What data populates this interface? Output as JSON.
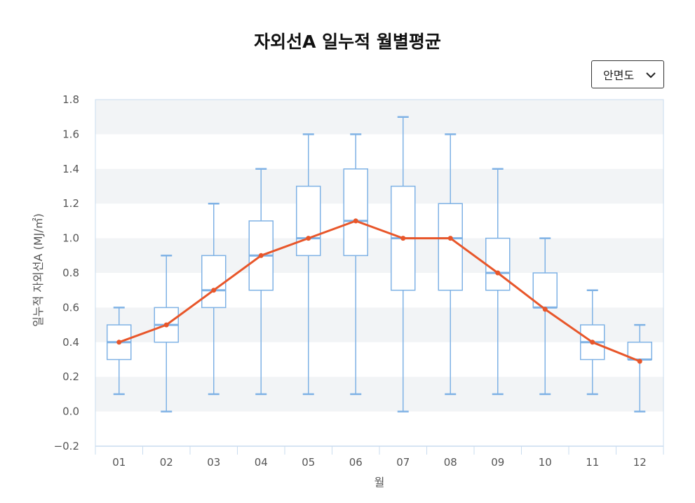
{
  "chart_data": {
    "type": "box",
    "title": "자외선A 일누적 월별평균",
    "xlabel": "월",
    "ylabel": "일누적 자외선A (MJ/㎡)",
    "categories": [
      "01",
      "02",
      "03",
      "04",
      "05",
      "06",
      "07",
      "08",
      "09",
      "10",
      "11",
      "12"
    ],
    "ylim": [
      -0.2,
      1.8
    ],
    "yticks": [
      "1.8",
      "1.6",
      "1.4",
      "1.2",
      "1.0",
      "0.8",
      "0.6",
      "0.4",
      "0.2",
      "0.0",
      "−0.2"
    ],
    "ytick_values": [
      1.8,
      1.6,
      1.4,
      1.2,
      1.0,
      0.8,
      0.6,
      0.4,
      0.2,
      0.0,
      -0.2
    ],
    "boxes": [
      {
        "min": 0.1,
        "q1": 0.3,
        "median": 0.4,
        "q3": 0.5,
        "max": 0.6
      },
      {
        "min": 0.0,
        "q1": 0.4,
        "median": 0.5,
        "q3": 0.6,
        "max": 0.9
      },
      {
        "min": 0.1,
        "q1": 0.6,
        "median": 0.7,
        "q3": 0.9,
        "max": 1.2
      },
      {
        "min": 0.1,
        "q1": 0.7,
        "median": 0.9,
        "q3": 1.1,
        "max": 1.4
      },
      {
        "min": 0.1,
        "q1": 0.9,
        "median": 1.0,
        "q3": 1.3,
        "max": 1.6
      },
      {
        "min": 0.1,
        "q1": 0.9,
        "median": 1.1,
        "q3": 1.4,
        "max": 1.6
      },
      {
        "min": 0.0,
        "q1": 0.7,
        "median": 1.0,
        "q3": 1.3,
        "max": 1.7
      },
      {
        "min": 0.1,
        "q1": 0.7,
        "median": 1.0,
        "q3": 1.2,
        "max": 1.6
      },
      {
        "min": 0.1,
        "q1": 0.7,
        "median": 0.8,
        "q3": 1.0,
        "max": 1.4
      },
      {
        "min": 0.1,
        "q1": 0.6,
        "median": 0.6,
        "q3": 0.8,
        "max": 1.0
      },
      {
        "min": 0.1,
        "q1": 0.3,
        "median": 0.4,
        "q3": 0.5,
        "max": 0.7
      },
      {
        "min": 0.0,
        "q1": 0.3,
        "median": 0.3,
        "q3": 0.4,
        "max": 0.5
      }
    ],
    "mean_line": {
      "values": [
        0.4,
        0.5,
        0.7,
        0.9,
        1.0,
        1.1,
        1.0,
        1.0,
        0.8,
        0.59,
        0.4,
        0.29
      ],
      "color": "#e8562a"
    },
    "box_color": "#7fb2e5",
    "median_color": "#7fb2e5",
    "band_color": "#f2f4f6",
    "grid": "alternating bands",
    "legend": "none"
  },
  "controls": {
    "region_select": {
      "value": "안면도",
      "icon": "chevron-down-icon"
    }
  }
}
